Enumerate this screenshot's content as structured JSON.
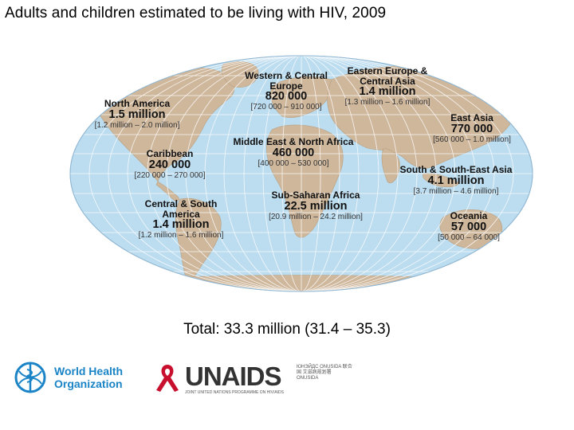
{
  "title": "Adults and children estimated to be living with HIV, 2009",
  "total": "Total: 33.3 million (31.4 – 35.3)",
  "regions": [
    {
      "id": "north-america",
      "name": "North America",
      "value": "1.5 million",
      "range": "[1.2 million – 2.0 million]"
    },
    {
      "id": "western-central-europe",
      "name": "Western & Central Europe",
      "value": "820 000",
      "range": "[720 000 – 910 000]"
    },
    {
      "id": "eastern-europe-central-asia",
      "name": "Eastern Europe & Central Asia",
      "value": "1.4 million",
      "range": "[1.3 million – 1.6 million]"
    },
    {
      "id": "east-asia",
      "name": "East Asia",
      "value": "770 000",
      "range": "[560 000 – 1.0 million]"
    },
    {
      "id": "caribbean",
      "name": "Caribbean",
      "value": "240 000",
      "range": "[220 000 – 270 000]"
    },
    {
      "id": "middle-east-north-africa",
      "name": "Middle East & North Africa",
      "value": "460 000",
      "range": "[400 000 – 530 000]"
    },
    {
      "id": "south-southeast-asia",
      "name": "South & South-East Asia",
      "value": "4.1 million",
      "range": "[3.7 million – 4.6 million]"
    },
    {
      "id": "central-south-america",
      "name": "Central & South America",
      "value": "1.4 million",
      "range": "[1.2 million – 1.6 million]"
    },
    {
      "id": "sub-saharan-africa",
      "name": "Sub-Saharan Africa",
      "value": "22.5 million",
      "range": "[20.9 million – 24.2 million]"
    },
    {
      "id": "oceania",
      "name": "Oceania",
      "value": "57 000",
      "range": "[50 000 – 64 000]"
    }
  ],
  "logos": {
    "who": {
      "line1": "World Health",
      "line2": "Organization"
    },
    "unaids": {
      "name": "UNAIDS",
      "subtitle": "JOINT UNITED NATIONS PROGRAMME ON HIV/AIDS",
      "languages": "ЮНЭЙДС ONUSIDA 联合国 艾滋病规划署 ONUSIDA"
    }
  },
  "colors": {
    "ocean": "#bcdcef",
    "land": "#cfb79c",
    "grid": "#ffffff",
    "text": "#111111"
  }
}
